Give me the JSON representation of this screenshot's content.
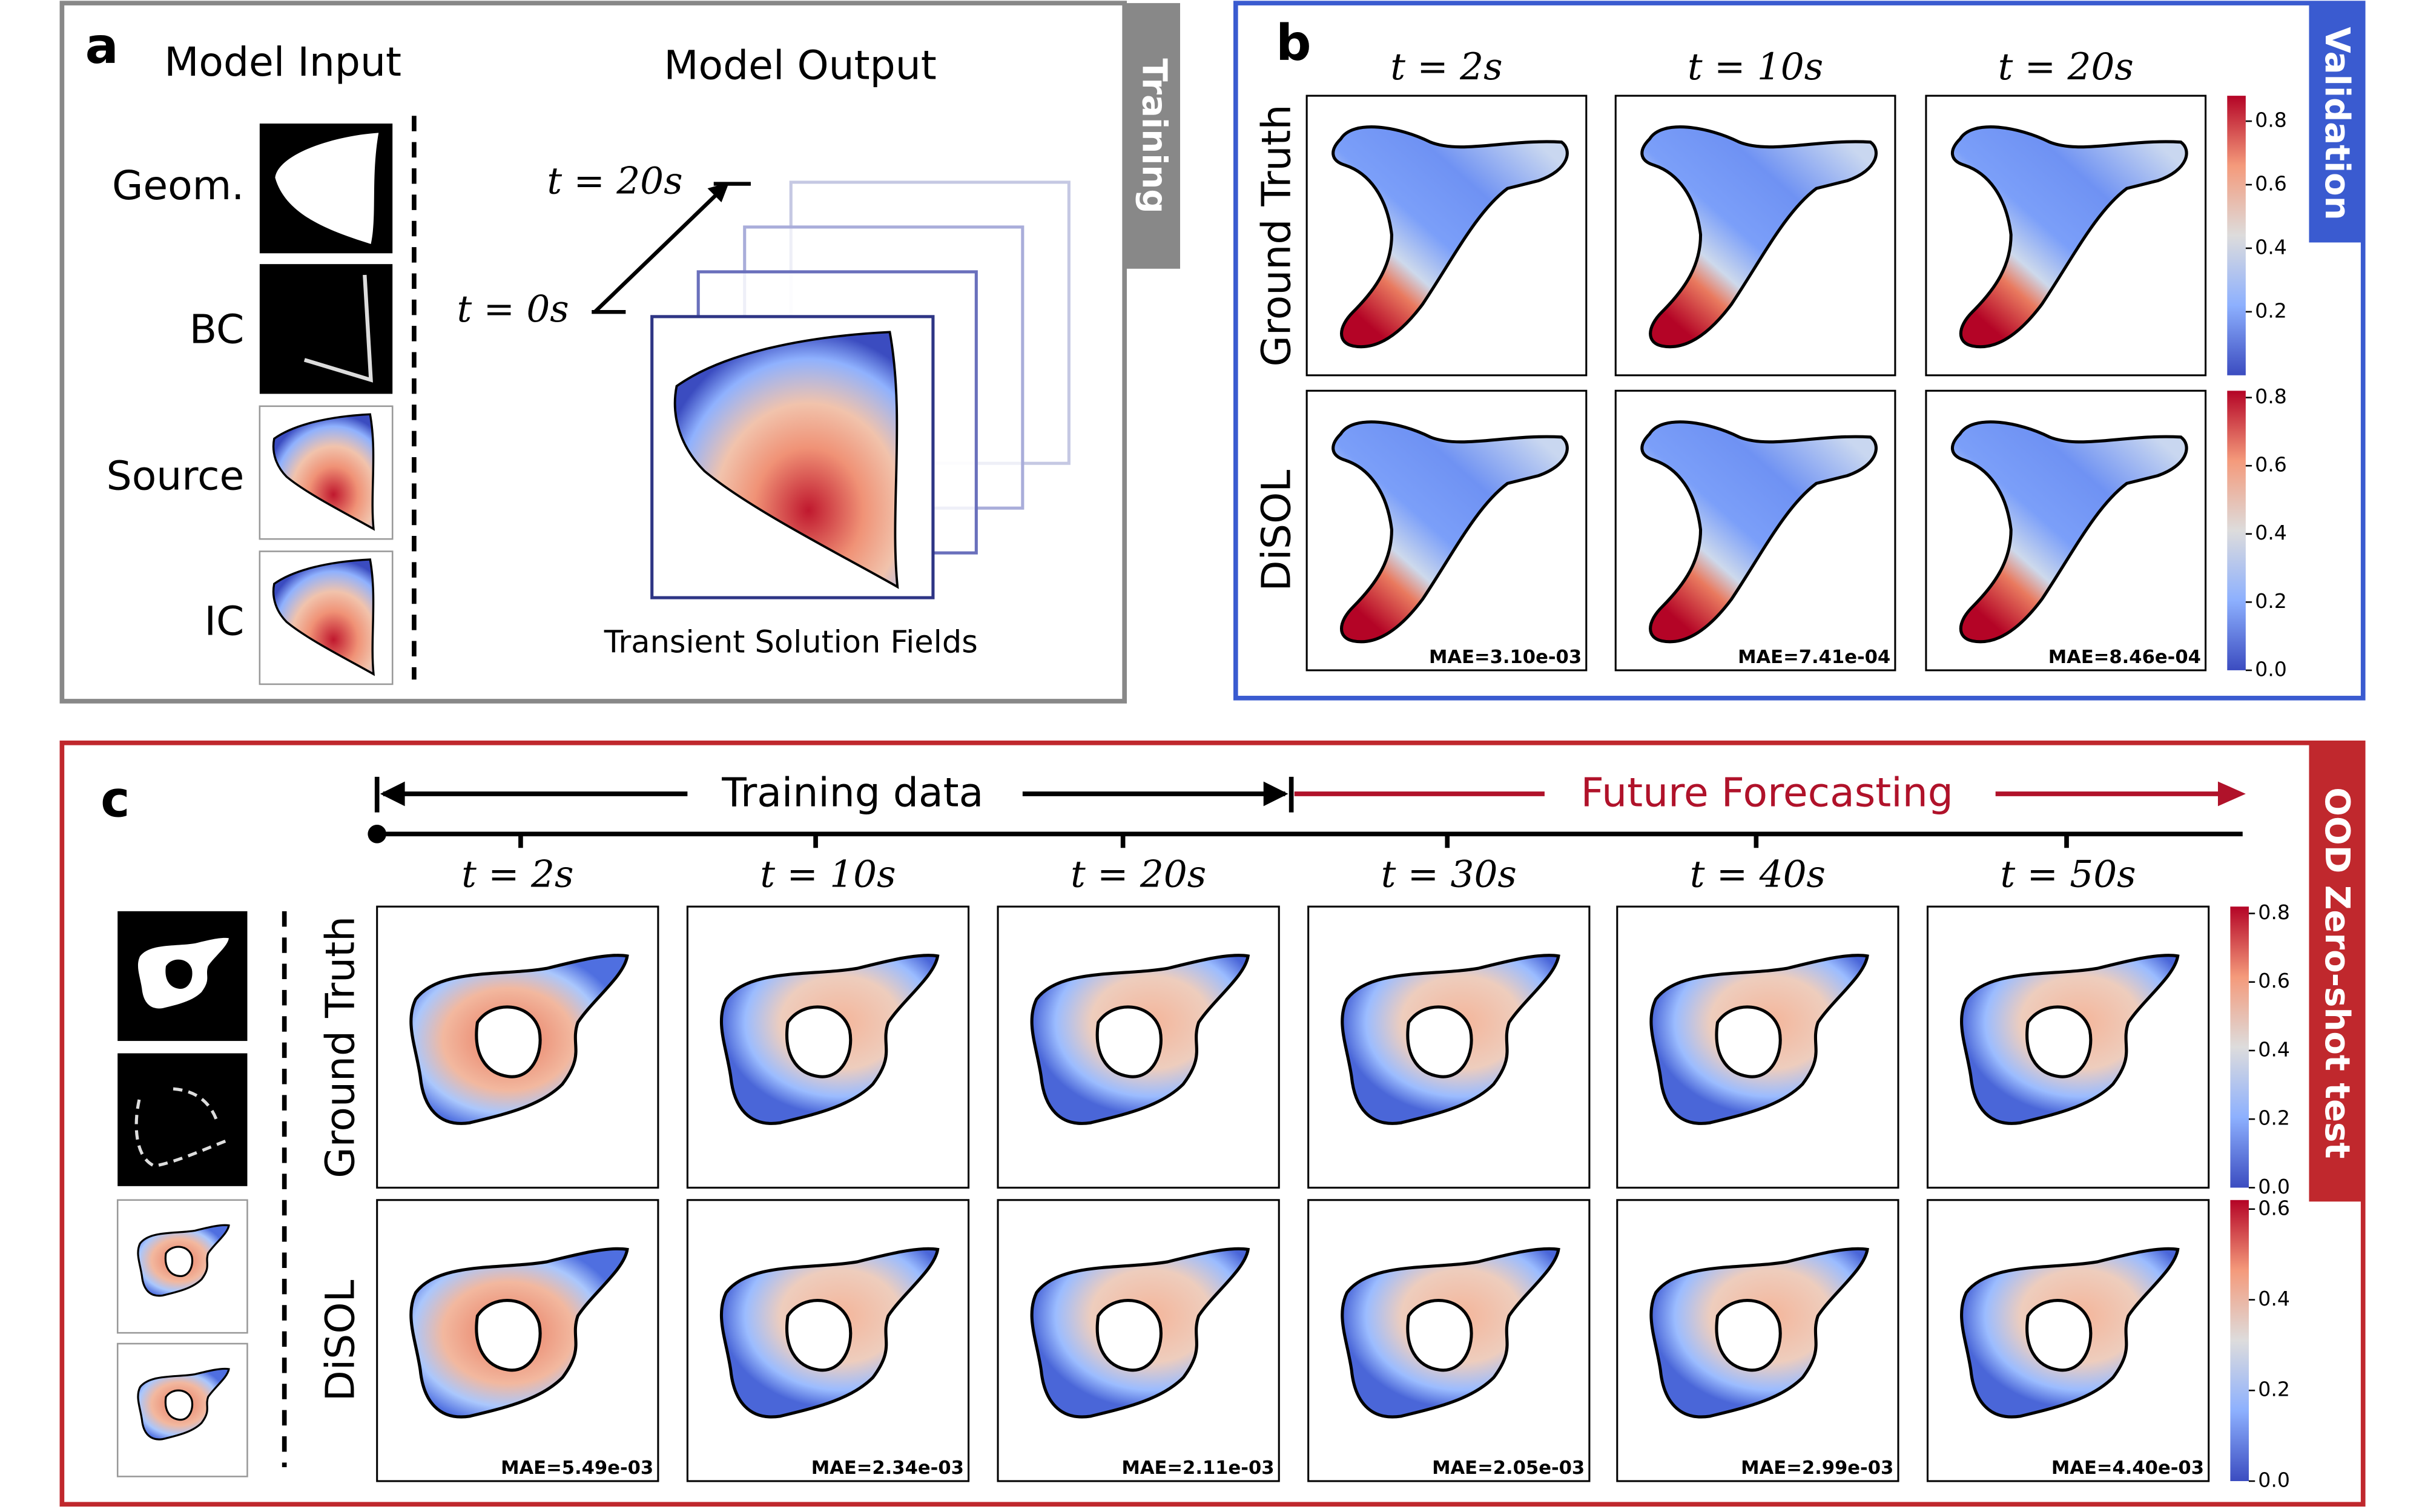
{
  "panel_a": {
    "label": "a",
    "model_input": "Model Input",
    "model_output": "Model Output",
    "side": "Training",
    "inputs": [
      "Geom.",
      "BC",
      "Source",
      "IC"
    ],
    "t_end": "t = 20s",
    "t_start": "t = 0s",
    "caption": "Transient Solution Fields"
  },
  "panel_b": {
    "label": "b",
    "side": "Validation",
    "times": [
      "t = 2s",
      "t = 10s",
      "t = 20s"
    ],
    "rows": [
      "Ground Truth",
      "DiSOL"
    ],
    "mae": [
      "MAE=3.10e-03",
      "MAE=7.41e-04",
      "MAE=8.46e-04"
    ],
    "colorbar_ticks": [
      [
        "0.2",
        "0.4",
        "0.6",
        "0.8"
      ],
      [
        "0.0",
        "0.2",
        "0.4",
        "0.6",
        "0.8"
      ]
    ]
  },
  "panel_c": {
    "label": "c",
    "side": "OOD Zero-shot test",
    "training": "Training data",
    "forecast": "Future Forecasting",
    "times": [
      "t = 2s",
      "t = 10s",
      "t = 20s",
      "t = 30s",
      "t = 40s",
      "t = 50s"
    ],
    "rows": [
      "Ground Truth",
      "DiSOL"
    ],
    "mae": [
      "MAE=5.49e-03",
      "MAE=2.34e-03",
      "MAE=2.11e-03",
      "MAE=2.05e-03",
      "MAE=2.99e-03",
      "MAE=4.40e-03"
    ],
    "colorbar_ticks": [
      [
        "0.0",
        "0.2",
        "0.4",
        "0.6",
        "0.8"
      ],
      [
        "0.0",
        "0.2",
        "0.4",
        "0.6"
      ]
    ]
  }
}
